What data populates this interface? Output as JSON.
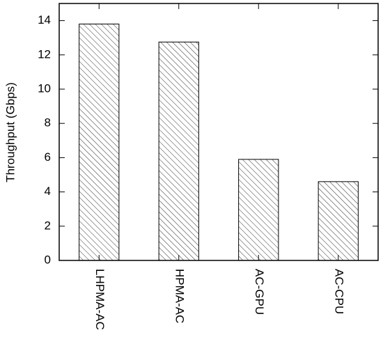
{
  "chart_data": {
    "type": "bar",
    "y_label": "Throughput (Gbps)",
    "categories": [
      "LHPMA-AC",
      "HPMA-AC",
      "AC-GPU",
      "AC-CPU"
    ],
    "values": [
      13.8,
      12.75,
      5.9,
      4.6
    ],
    "color": "#333333",
    "ylim": [
      0,
      15
    ],
    "yticks": [
      0,
      2,
      4,
      6,
      8,
      10,
      12,
      14
    ],
    "grid": false
  }
}
